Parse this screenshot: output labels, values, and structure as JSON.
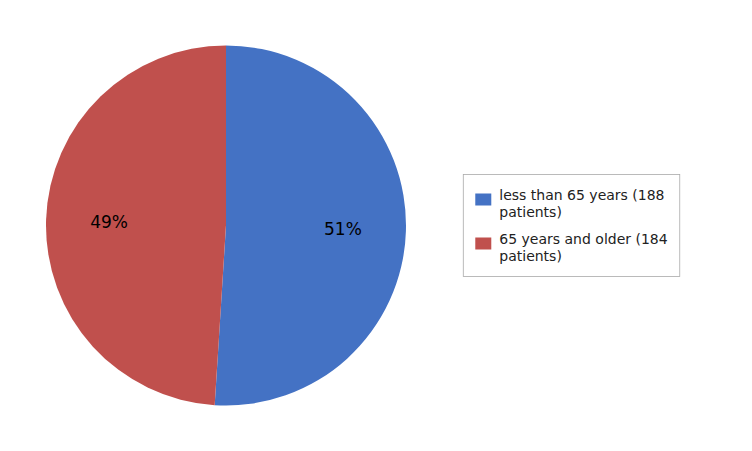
{
  "chart_data": {
    "type": "pie",
    "categories": [
      "less than 65 years (188\npatients)",
      "65 years and older (184\npatients)"
    ],
    "values": [
      51,
      49
    ],
    "value_labels": [
      "51%",
      "49%"
    ],
    "colors": [
      "#4472C4",
      "#C0504D"
    ],
    "data_labels": true,
    "legend": "right"
  }
}
